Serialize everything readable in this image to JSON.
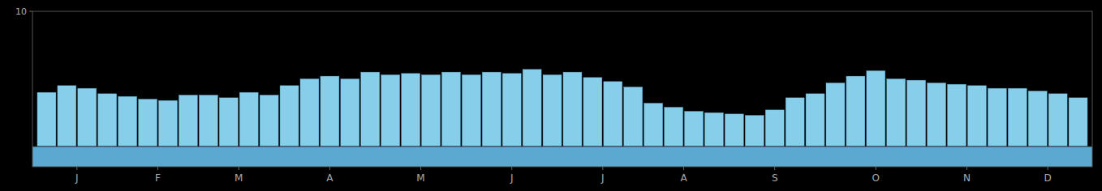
{
  "chart_data": {
    "type": "bar",
    "categories": [
      null,
      null,
      null,
      null,
      null,
      null,
      null,
      null,
      null,
      null,
      null,
      null,
      null,
      null,
      null,
      null,
      null,
      null,
      null,
      null,
      null,
      null,
      null,
      null,
      null,
      null,
      null,
      null,
      null,
      null,
      null,
      null,
      null,
      null,
      null,
      null,
      null,
      null,
      null,
      null,
      null,
      null,
      null,
      null,
      null,
      null,
      null,
      null,
      null,
      null,
      null,
      null
    ],
    "values": [
      4.0,
      4.5,
      4.3,
      3.9,
      3.7,
      3.5,
      3.4,
      3.8,
      3.8,
      3.6,
      4.0,
      3.8,
      4.5,
      5.0,
      5.2,
      5.0,
      5.5,
      5.3,
      5.4,
      5.3,
      5.5,
      5.3,
      5.5,
      5.4,
      5.7,
      5.3,
      5.5,
      5.1,
      4.8,
      4.4,
      3.2,
      2.9,
      2.6,
      2.5,
      2.4,
      2.3,
      2.7,
      3.6,
      3.9,
      4.7,
      5.2,
      5.6,
      5.0,
      4.9,
      4.7,
      4.6,
      4.5,
      4.3,
      4.3,
      4.1,
      3.9,
      3.6
    ],
    "color": "#87CEEB",
    "xlim": [
      -0.7,
      51.7
    ],
    "xticks": [
      {
        "value": 1.5,
        "label": "J"
      },
      {
        "value": 5.5,
        "label": "F"
      },
      {
        "value": 9.5,
        "label": "M"
      },
      {
        "value": 14,
        "label": "A"
      },
      {
        "value": 18.5,
        "label": "M"
      },
      {
        "value": 23,
        "label": "J"
      },
      {
        "value": 27.5,
        "label": "J"
      },
      {
        "value": 31.5,
        "label": "A"
      },
      {
        "value": 36,
        "label": "S"
      },
      {
        "value": 41,
        "label": "O"
      },
      {
        "value": 45.5,
        "label": "N"
      },
      {
        "value": 49.5,
        "label": "D"
      }
    ],
    "ylim": [
      -1.5,
      10
    ],
    "yticks": [
      10
    ],
    "grid": false
  }
}
